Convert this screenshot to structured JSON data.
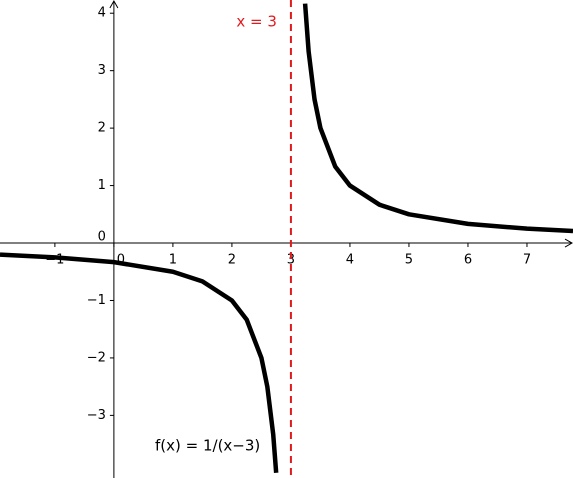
{
  "chart_data": {
    "type": "line",
    "function_label": "f(x) = 1/(x−3)",
    "x": [
      -1.93,
      -1,
      0,
      1,
      1.5,
      2,
      2.25,
      2.5,
      2.6,
      2.7,
      2.75,
      3,
      3.24,
      3.3,
      3.4,
      3.5,
      3.75,
      4,
      4.5,
      5,
      6,
      7,
      7.78
    ],
    "series": [
      {
        "color": "#000000",
        "values": [
          -0.203,
          -0.25,
          -0.333,
          -0.5,
          -0.667,
          -1,
          -1.333,
          -2,
          -2.5,
          -3.333,
          -4,
          null,
          4.167,
          3.333,
          2.5,
          2,
          1.333,
          1,
          0.667,
          0.5,
          0.333,
          0.25,
          0.209
        ]
      }
    ],
    "asymptote": {
      "x": 3,
      "label": "x = 3",
      "color": "#e31a1c"
    },
    "xlim": [
      -1.93,
      7.78
    ],
    "ylim": [
      -4.09,
      4.23
    ],
    "xticks": [
      {
        "value": -1,
        "label": "−1"
      },
      0,
      1,
      2,
      3,
      4,
      5,
      6,
      7
    ],
    "yticks": [
      {
        "value": -3,
        "label": "−3"
      },
      {
        "value": -2,
        "label": "−2"
      },
      {
        "value": -1,
        "label": "−1"
      },
      0,
      1,
      2,
      3,
      4
    ],
    "grid": false
  }
}
